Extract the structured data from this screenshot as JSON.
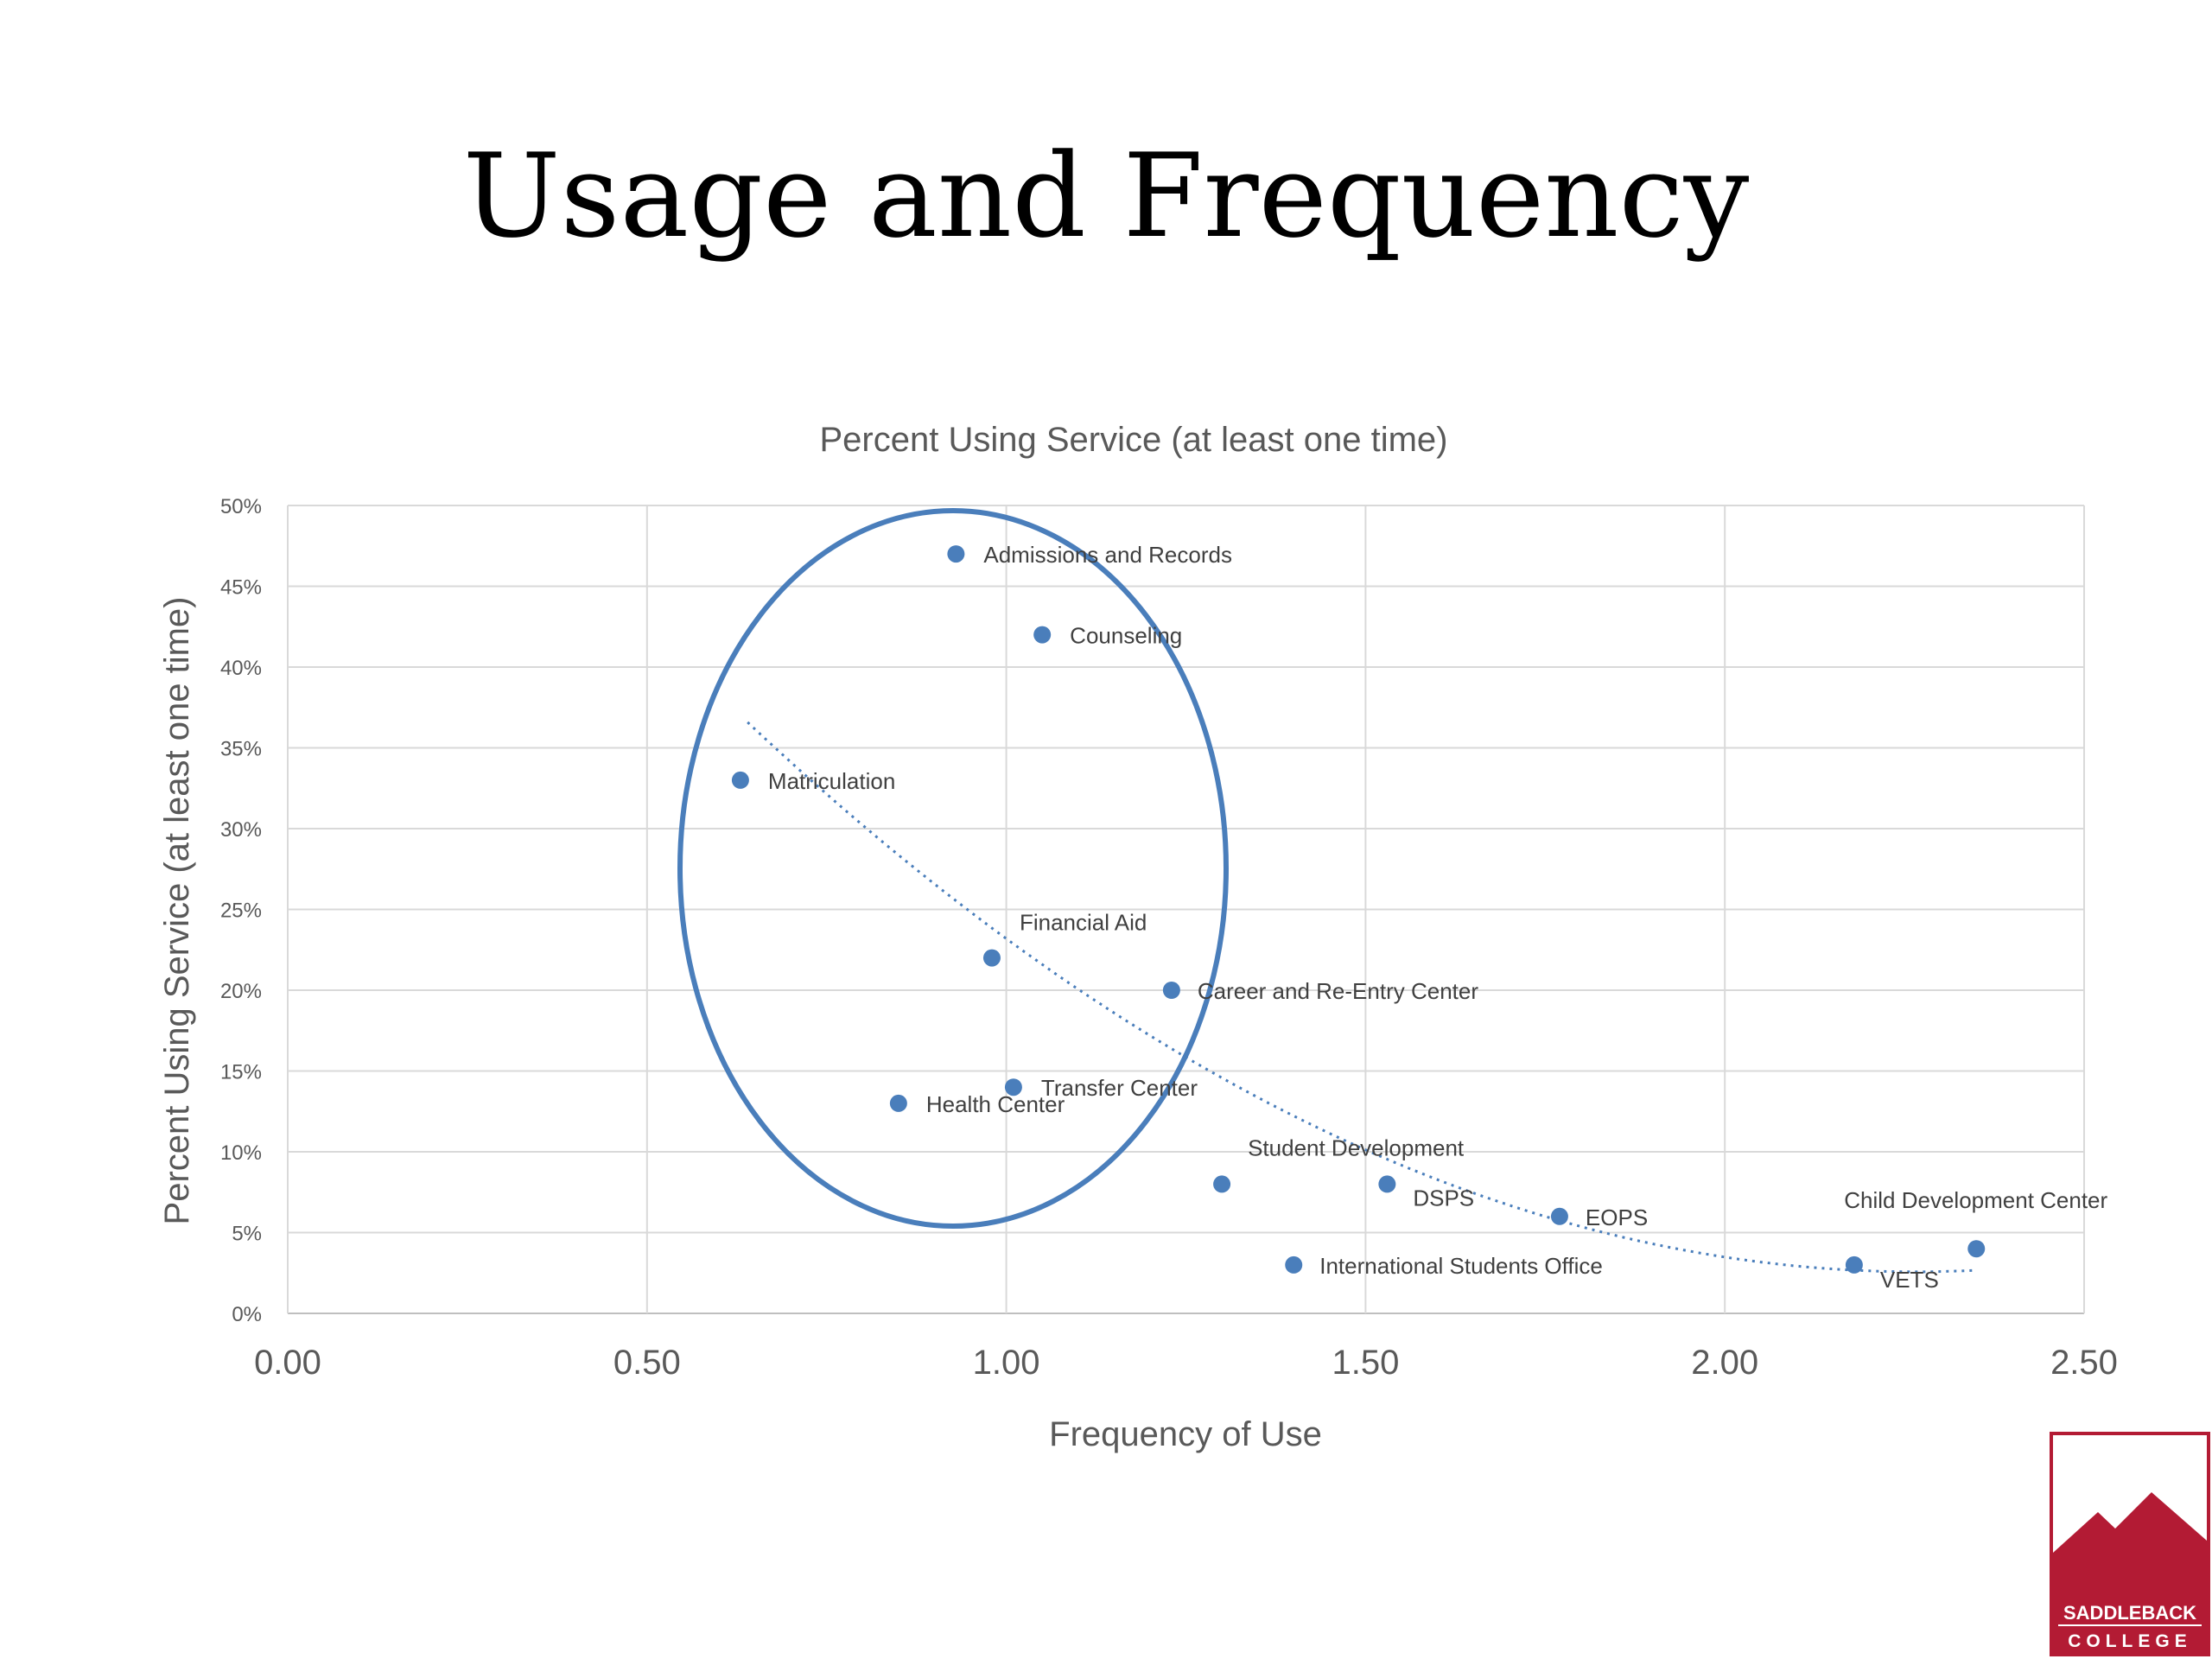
{
  "slide": {
    "title": "Usage and Frequency"
  },
  "chart_data": {
    "type": "scatter",
    "title": "Percent Using Service (at least one time)",
    "xlabel": "Frequency of Use",
    "ylabel": "Percent Using Service (at least one time)",
    "xlim": [
      0,
      2.5
    ],
    "ylim": [
      0,
      0.5
    ],
    "x_ticks": [
      "0.00",
      "0.50",
      "1.00",
      "1.50",
      "2.00",
      "2.50"
    ],
    "y_ticks": [
      "0%",
      "5%",
      "10%",
      "15%",
      "20%",
      "25%",
      "30%",
      "35%",
      "40%",
      "45%",
      "50%"
    ],
    "grid": true,
    "point_color": "#4A7EBB",
    "trendline": {
      "type": "polynomial",
      "style": "dotted",
      "color": "#4A7EBB",
      "x_range": [
        0.64,
        2.35
      ]
    },
    "highlight_ellipse": {
      "color": "#4A7EBB",
      "encloses": [
        "Admissions and Records",
        "Counseling",
        "Matriculation",
        "Financial Aid",
        "Transfer Center",
        "Health Center"
      ]
    },
    "points": [
      {
        "label": "Admissions and Records",
        "x": 0.93,
        "y": 0.47
      },
      {
        "label": "Counseling",
        "x": 1.05,
        "y": 0.42
      },
      {
        "label": "Matriculation",
        "x": 0.63,
        "y": 0.33
      },
      {
        "label": "Financial Aid",
        "x": 0.98,
        "y": 0.22
      },
      {
        "label": "Career and Re-Entry Center",
        "x": 1.23,
        "y": 0.2
      },
      {
        "label": "Transfer Center",
        "x": 1.01,
        "y": 0.14
      },
      {
        "label": "Health Center",
        "x": 0.85,
        "y": 0.13
      },
      {
        "label": "Student Development",
        "x": 1.3,
        "y": 0.08
      },
      {
        "label": "DSPS",
        "x": 1.53,
        "y": 0.08
      },
      {
        "label": "EOPS",
        "x": 1.77,
        "y": 0.06
      },
      {
        "label": "International Students Office",
        "x": 1.4,
        "y": 0.03
      },
      {
        "label": "VETS",
        "x": 2.18,
        "y": 0.03
      },
      {
        "label": "Child Development Center",
        "x": 2.35,
        "y": 0.04
      }
    ]
  },
  "logo": {
    "line1": "SADDLEBACK",
    "line2": "COLLEGE",
    "color": "#B31B34"
  }
}
